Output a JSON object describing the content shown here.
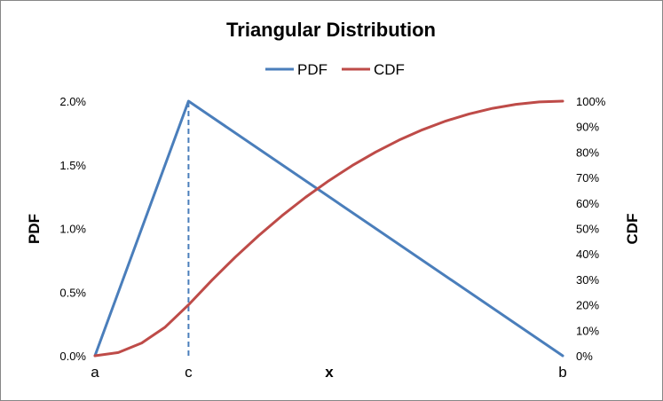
{
  "chart_data": {
    "type": "line",
    "title": "Triangular Distribution",
    "xlabel": "x",
    "ylabel": "PDF",
    "y2label": "CDF",
    "legend_position": "top",
    "grid": false,
    "params": {
      "a": 0,
      "c": 20,
      "b": 100
    },
    "x_range": [
      0,
      100
    ],
    "x_tick_labels": [
      {
        "x": 0,
        "label": "a"
      },
      {
        "x": 20,
        "label": "c"
      },
      {
        "x": 100,
        "label": "b"
      }
    ],
    "y_left": {
      "range": [
        0,
        0.02
      ],
      "tick_values": [
        0,
        0.005,
        0.01,
        0.015,
        0.02
      ],
      "tick_labels": [
        "0.0%",
        "0.5%",
        "1.0%",
        "1.5%",
        "2.0%"
      ]
    },
    "y_right": {
      "range": [
        0,
        1
      ],
      "tick_values": [
        0,
        0.1,
        0.2,
        0.3,
        0.4,
        0.5,
        0.6,
        0.7,
        0.8,
        0.9,
        1
      ],
      "tick_labels": [
        "0%",
        "10%",
        "20%",
        "30%",
        "40%",
        "50%",
        "60%",
        "70%",
        "80%",
        "90%",
        "100%"
      ]
    },
    "annotations": [
      {
        "type": "dashed-vertical-line",
        "x": 20,
        "from_y": 0,
        "to_y": 0.02
      }
    ],
    "series": [
      {
        "name": "PDF",
        "axis": "left",
        "color": "#4a7ebb",
        "x": [
          0,
          20,
          100
        ],
        "y": [
          0,
          0.02,
          0
        ]
      },
      {
        "name": "CDF",
        "axis": "right",
        "color": "#be4b48",
        "x": [
          0,
          5,
          10,
          15,
          20,
          25,
          30,
          35,
          40,
          45,
          50,
          55,
          60,
          65,
          70,
          75,
          80,
          85,
          90,
          95,
          100
        ],
        "y": [
          0,
          0.0125,
          0.05,
          0.1125,
          0.2,
          0.2969,
          0.3875,
          0.4719,
          0.55,
          0.6219,
          0.6875,
          0.7469,
          0.8,
          0.8469,
          0.8875,
          0.9219,
          0.95,
          0.9719,
          0.9875,
          0.9969,
          1
        ]
      }
    ]
  }
}
